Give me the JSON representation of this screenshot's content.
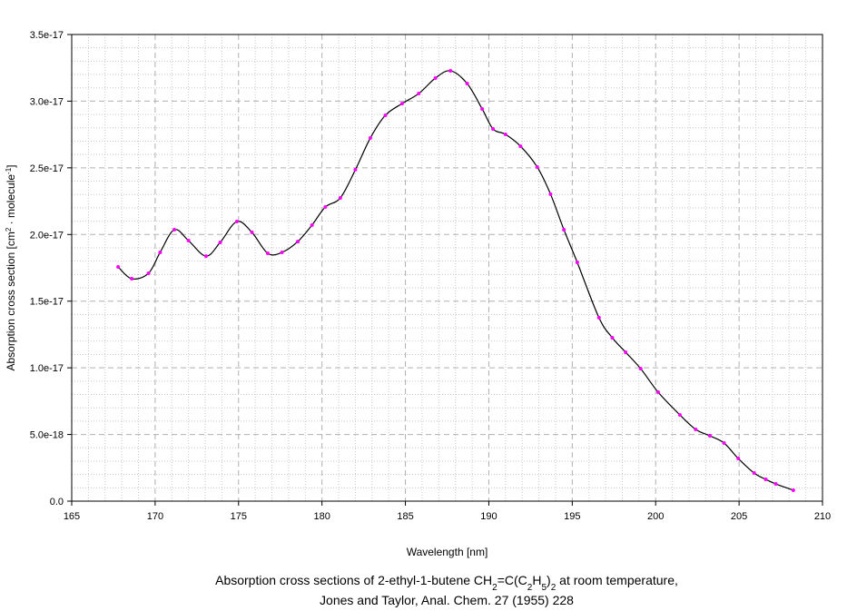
{
  "chart_data": {
    "type": "line",
    "xlabel": "Wavelength [nm]",
    "ylabel": [
      "Absorption cross section [cm",
      "2",
      " · molecule",
      "-1",
      "]"
    ],
    "caption": [
      [
        "Absorption cross sections of 2-ethyl-1-butene CH",
        "2",
        "=C(C",
        "2",
        "H",
        "5",
        ")",
        "2",
        " at room temperature,"
      ],
      [
        "Jones and Taylor, Anal. Chem. 27 (1955) 228"
      ]
    ],
    "xlim": [
      165,
      210
    ],
    "xticks": [
      165,
      170,
      175,
      180,
      185,
      190,
      195,
      200,
      205,
      210
    ],
    "ylim": [
      0,
      3.5e-17
    ],
    "yticks": [
      {
        "value": 0,
        "label": "0.0"
      },
      {
        "value": 5e-18,
        "label": "5.0e-18"
      },
      {
        "value": 1e-17,
        "label": "1.0e-17"
      },
      {
        "value": 1.5e-17,
        "label": "1.5e-17"
      },
      {
        "value": 2e-17,
        "label": "2.0e-17"
      },
      {
        "value": 2.5e-17,
        "label": "2.5e-17"
      },
      {
        "value": 3e-17,
        "label": "3.0e-17"
      },
      {
        "value": 3.5e-17,
        "label": "3.5e-17"
      }
    ],
    "grid": true,
    "line_color": "#000000",
    "marker_color": "#ff00ff",
    "x": [
      167.78,
      168.6,
      169.6,
      170.3,
      171.15,
      172.0,
      173.05,
      173.9,
      174.9,
      175.8,
      176.75,
      177.6,
      178.55,
      179.4,
      180.2,
      181.1,
      182.0,
      182.9,
      183.8,
      184.8,
      185.8,
      186.8,
      187.7,
      188.7,
      189.6,
      190.25,
      191.0,
      191.9,
      192.9,
      193.7,
      194.5,
      195.3,
      196.6,
      197.4,
      198.2,
      199.1,
      200.15,
      201.45,
      202.4,
      203.25,
      204.1,
      204.95,
      205.9,
      206.6,
      207.2,
      208.25
    ],
    "values": [
      1.757e-17,
      1.668e-17,
      1.709e-17,
      1.866e-17,
      2.036e-17,
      1.954e-17,
      1.838e-17,
      1.941e-17,
      2.097e-17,
      2.016e-17,
      1.859e-17,
      1.866e-17,
      1.947e-17,
      2.07e-17,
      2.206e-17,
      2.274e-17,
      2.485e-17,
      2.724e-17,
      2.894e-17,
      2.982e-17,
      3.057e-17,
      3.173e-17,
      3.228e-17,
      3.132e-17,
      2.942e-17,
      2.792e-17,
      2.751e-17,
      2.662e-17,
      2.506e-17,
      2.302e-17,
      2.036e-17,
      1.791e-17,
      1.376e-17,
      1.226e-17,
      1.117e-17,
      9.94e-18,
      8.17e-18,
      6.47e-18,
      5.38e-18,
      4.9e-18,
      4.36e-18,
      3.2e-18,
      2.11e-18,
      1.63e-18,
      1.29e-18,
      8.2e-19
    ]
  }
}
